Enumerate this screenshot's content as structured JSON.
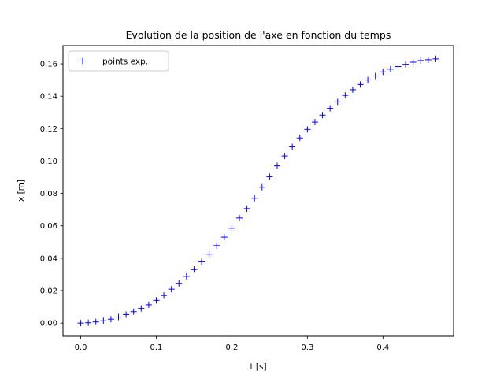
{
  "chart_data": {
    "type": "scatter",
    "title": "Evolution de la position de l'axe en fonction du temps",
    "xlabel": "t [s]",
    "ylabel": "x [m]",
    "xlim": [
      -0.0235,
      0.4935
    ],
    "ylim": [
      -0.0082,
      0.1712
    ],
    "xticks": [
      0.0,
      0.1,
      0.2,
      0.3,
      0.4
    ],
    "xtick_labels": [
      "0.0",
      "0.1",
      "0.2",
      "0.3",
      "0.4"
    ],
    "yticks": [
      0.0,
      0.02,
      0.04,
      0.06,
      0.08,
      0.1,
      0.12,
      0.14,
      0.16
    ],
    "ytick_labels": [
      "0.00",
      "0.02",
      "0.04",
      "0.06",
      "0.08",
      "0.10",
      "0.12",
      "0.14",
      "0.16"
    ],
    "grid": false,
    "legend_position": "top-left",
    "series": [
      {
        "name": "points exp.",
        "marker": "+",
        "color": "#0000ff",
        "x": [
          0.0,
          0.01,
          0.02,
          0.03,
          0.04,
          0.05,
          0.06,
          0.07,
          0.08,
          0.09,
          0.1,
          0.11,
          0.12,
          0.13,
          0.14,
          0.15,
          0.16,
          0.17,
          0.18,
          0.19,
          0.2,
          0.21,
          0.22,
          0.23,
          0.24,
          0.25,
          0.26,
          0.27,
          0.28,
          0.29,
          0.3,
          0.31,
          0.32,
          0.33,
          0.34,
          0.35,
          0.36,
          0.37,
          0.38,
          0.39,
          0.4,
          0.41,
          0.42,
          0.43,
          0.44,
          0.45,
          0.46,
          0.47
        ],
        "y": [
          0.0,
          0.0002,
          0.0007,
          0.0014,
          0.0024,
          0.0037,
          0.0052,
          0.007,
          0.009,
          0.0113,
          0.014,
          0.017,
          0.0209,
          0.0245,
          0.0288,
          0.033,
          0.0378,
          0.0425,
          0.0478,
          0.053,
          0.0585,
          0.0648,
          0.0706,
          0.077,
          0.0838,
          0.0903,
          0.097,
          0.1031,
          0.1087,
          0.1142,
          0.1195,
          0.124,
          0.1283,
          0.1325,
          0.1365,
          0.1405,
          0.144,
          0.1472,
          0.15,
          0.1525,
          0.155,
          0.1567,
          0.1583,
          0.1597,
          0.161,
          0.162,
          0.1625,
          0.163
        ]
      }
    ]
  }
}
